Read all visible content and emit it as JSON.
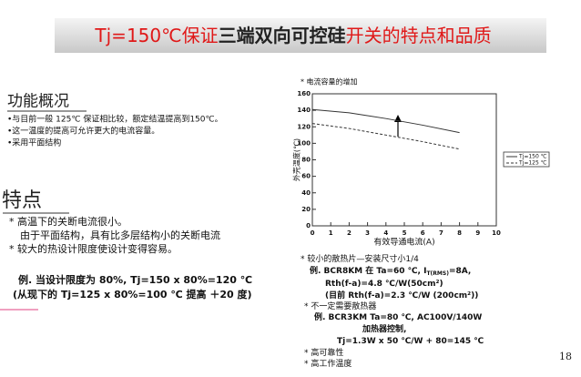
{
  "title": {
    "part1": "Tj=150℃保证",
    "part2": "三端双向可控硅",
    "part3": "开关的特点和品质"
  },
  "overview": {
    "heading": "功能概况",
    "items": [
      "•与目前一般 125℃ 保证相比较，额定结温提高到150℃。",
      "•这一温度的提高可允许更大的电流容量。",
      "•采用平面结构"
    ]
  },
  "features": {
    "heading": "特点",
    "items": [
      "* 高温下的关断电流很小。",
      "由于平面结构，具有比多层结构小的关断电流",
      "* 较大的热设计限度使设计变得容易。"
    ]
  },
  "example": [
    "例. 当设计限度为 80%,  Tj=150 x 80%=120   ℃",
    "(从现下的 Tj=125 x 80%=100 ℃ 提高 ＋20 度)"
  ],
  "chart_data": {
    "type": "line",
    "title": "* 电流容量的增加",
    "x_label": "有效导通电流(A)",
    "y_label": "外壳温度(℃)",
    "x": [
      0,
      2,
      4,
      6,
      8
    ],
    "series": [
      {
        "name": "Tj=150 ℃",
        "color": "#333333",
        "dash": false,
        "values": [
          141,
          137,
          130,
          122,
          113
        ]
      },
      {
        "name": "Tj=125 ℃",
        "color": "#333333",
        "dash": true,
        "values": [
          124,
          118,
          110,
          102,
          93
        ]
      }
    ],
    "xlim": [
      0,
      10
    ],
    "ylim": [
      0,
      160
    ],
    "xticks": [
      0,
      1,
      2,
      3,
      4,
      5,
      6,
      7,
      8,
      9,
      10
    ],
    "yticks": [
      0,
      20,
      40,
      60,
      80,
      100,
      120,
      140,
      160
    ],
    "grid": false,
    "legend": "right"
  },
  "notes": [
    {
      "text": "* 较小的散热片—安装尺寸小1/4"
    },
    {
      "text": "例.  BCR8KM  在 Ta=60 ℃, I",
      "sub": "T(RMS)",
      "rest": "=8A,"
    },
    {
      "text": "Rth(f-a)=4.8 ℃/W(50cm²)"
    },
    {
      "text": "(目前 Rth(f-a)=2.3 ℃/W (200cm²))"
    },
    {
      "text": "* 不一定需要散热器"
    },
    {
      "text": "例.  BCR3KM  Ta=80 ℃, AC100V/140W"
    },
    {
      "text": "加热器控制,"
    },
    {
      "text": "Tj=1.3W x 50 ℃/W + 80=145 ℃"
    },
    {
      "text": "* 高可靠性"
    },
    {
      "text": "* 高工作温度"
    }
  ],
  "page_number": "18"
}
